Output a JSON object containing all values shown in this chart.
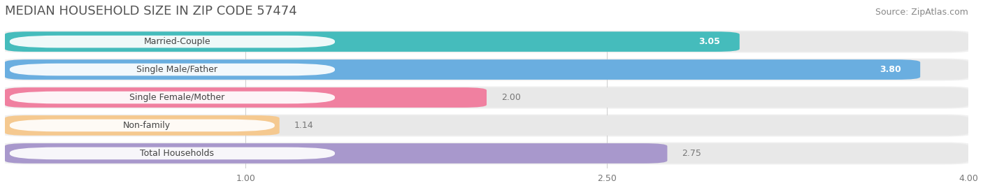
{
  "title": "MEDIAN HOUSEHOLD SIZE IN ZIP CODE 57474",
  "source": "Source: ZipAtlas.com",
  "categories": [
    "Married-Couple",
    "Single Male/Father",
    "Single Female/Mother",
    "Non-family",
    "Total Households"
  ],
  "values": [
    3.05,
    3.8,
    2.0,
    1.14,
    2.75
  ],
  "bar_colors": [
    "#45BCBC",
    "#6AAEE0",
    "#F080A0",
    "#F5C990",
    "#A898CC"
  ],
  "value_colors": [
    "white",
    "white",
    "#888888",
    "#888888",
    "#888888"
  ],
  "xlim": [
    0,
    4.0
  ],
  "xmin": 0,
  "xticks": [
    1.0,
    2.5,
    4.0
  ],
  "xtick_labels": [
    "1.00",
    "2.50",
    "4.00"
  ],
  "background_color": "#ffffff",
  "row_bg_color": "#f0f0f0",
  "bar_track_color": "#e8e8e8",
  "label_bg_color": "#ffffff",
  "value_fontsize": 9,
  "label_fontsize": 9,
  "title_fontsize": 13,
  "source_fontsize": 9
}
